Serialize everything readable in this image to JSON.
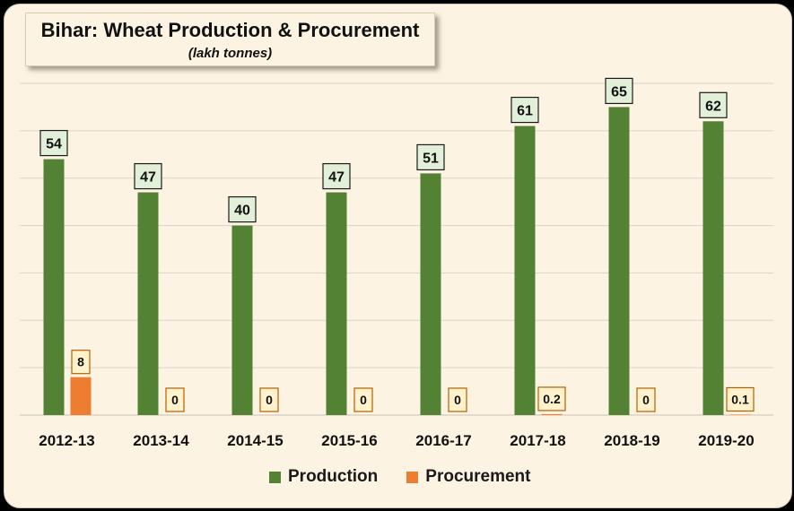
{
  "chart_data": {
    "type": "bar",
    "title": "Bihar: Wheat Production & Procurement",
    "subtitle": "(lakh tonnes)",
    "categories": [
      "2012-13",
      "2013-14",
      "2014-15",
      "2015-16",
      "2016-17",
      "2017-18",
      "2018-19",
      "2019-20"
    ],
    "series": [
      {
        "name": "Production",
        "color": "#548235",
        "values": [
          54,
          47,
          40,
          47,
          51,
          61,
          65,
          62
        ],
        "labels": [
          "54",
          "47",
          "40",
          "47",
          "51",
          "61",
          "65",
          "62"
        ],
        "label_bg": "#e2f0d9"
      },
      {
        "name": "Procurement",
        "color": "#ed7d31",
        "values": [
          8,
          0,
          0,
          0,
          0,
          0.2,
          0,
          0.1
        ],
        "labels": [
          "8",
          "0",
          "0",
          "0",
          "0",
          "0.2",
          "0",
          "0.1"
        ],
        "label_bg": "#fff2cc"
      }
    ],
    "ylim": [
      0,
      70
    ],
    "grid": true,
    "legend": "bottom"
  }
}
